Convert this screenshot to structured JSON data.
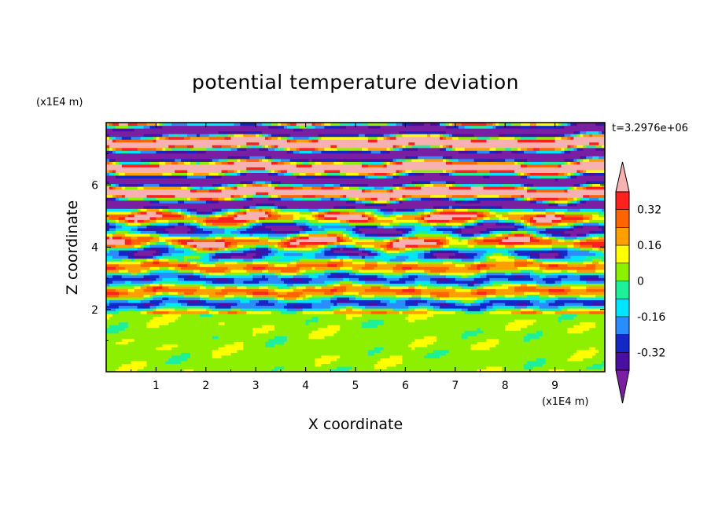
{
  "chart_data": {
    "type": "heatmap",
    "title": "potential temperature deviation",
    "xlabel": "X coordinate",
    "ylabel": "Z coordinate",
    "x_unit_label": "(x1E4 m)",
    "y_unit_label": "(x1E4 m)",
    "time_label": "t=3.2976e+06",
    "xlim": [
      0,
      10
    ],
    "ylim": [
      0,
      8
    ],
    "x_ticks": [
      1,
      2,
      3,
      4,
      5,
      6,
      7,
      8,
      9
    ],
    "y_ticks": [
      2,
      4,
      6
    ],
    "colorbar": {
      "labels": [
        "0.32",
        "0.16",
        "0",
        "-0.16",
        "-0.32"
      ],
      "label_values": [
        0.32,
        0.16,
        0,
        -0.16,
        -0.32
      ],
      "levels": [
        -0.4,
        -0.32,
        -0.24,
        -0.16,
        -0.08,
        0,
        0.08,
        0.16,
        0.24,
        0.32,
        0.4
      ],
      "colors": [
        "#7b1fa2",
        "#4b0fa0",
        "#1428c8",
        "#2a8cff",
        "#00e5ff",
        "#1ef09a",
        "#8cf000",
        "#ffff00",
        "#ffa000",
        "#ff6400",
        "#ff2020",
        "#f7b1b1"
      ],
      "extend": "both"
    }
  }
}
